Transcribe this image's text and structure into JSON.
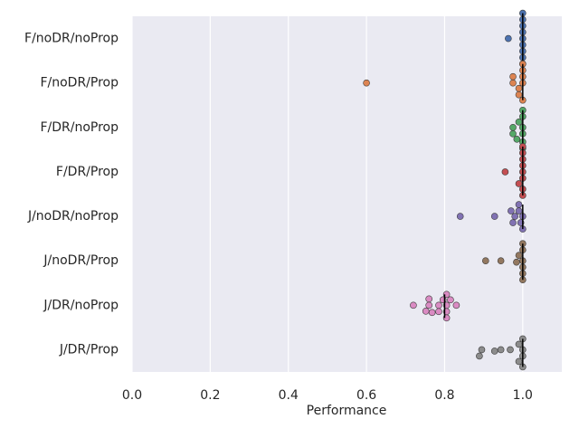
{
  "chart_data": {
    "type": "swarm",
    "xlabel": "Performance",
    "categories": [
      "F/noDR/noProp",
      "F/noDR/Prop",
      "F/DR/noProp",
      "F/DR/Prop",
      "J/noDR/noProp",
      "J/noDR/Prop",
      "J/DR/noProp",
      "J/DR/Prop"
    ],
    "colors": [
      "#4c72b0",
      "#dd8452",
      "#55a868",
      "#c44e52",
      "#8172b3",
      "#937860",
      "#da8bc3",
      "#8c8c8c"
    ],
    "values": [
      [
        1,
        1,
        1,
        1,
        0.963,
        1,
        1,
        1,
        1,
        1
      ],
      [
        1,
        0.99,
        0.975,
        1,
        0.6,
        0.975,
        0.99,
        1,
        1,
        1
      ],
      [
        1,
        1,
        0.99,
        0.975,
        1,
        0.975,
        0.985,
        1,
        1,
        1
      ],
      [
        1,
        1,
        1,
        0.99,
        0.955,
        1,
        1,
        1,
        1,
        1
      ],
      [
        1,
        0.995,
        0.98,
        0.99,
        0.84,
        0.928,
        0.975,
        0.97,
        0.99,
        1
      ],
      [
        1,
        1,
        0.99,
        0.905,
        0.944,
        0.984,
        1,
        1,
        1,
        1
      ],
      [
        0.805,
        0.76,
        0.805,
        0.83,
        0.815,
        0.785,
        0.752,
        0.72,
        0.796,
        0.76,
        0.785,
        0.805,
        0.768,
        0.805
      ],
      [
        1,
        1,
        0.99,
        0.895,
        0.889,
        0.944,
        0.928,
        0.968,
        0.99,
        1,
        1
      ]
    ],
    "medians": [
      1,
      1,
      1,
      1,
      1,
      1,
      0.8,
      1
    ],
    "xlim": [
      0,
      1.1
    ],
    "xticks": [
      {
        "value": 0,
        "label": "0.0"
      },
      0.2,
      0.4,
      0.6,
      0.8,
      {
        "value": 1,
        "label": "1.0"
      }
    ],
    "grid": true
  }
}
